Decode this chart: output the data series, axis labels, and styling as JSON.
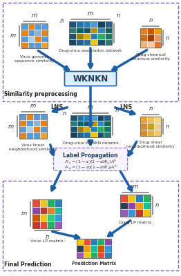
{
  "bg_color": "#ffffff",
  "dashed_box_color": "#7b5ea7",
  "blue_arrow_color": "#1a5fa8",
  "section1_label": "Similarity preprocessing",
  "section2_label": "Final Prediction",
  "wknkn_label": "WKNKN",
  "label_prop_title": "Label Propagation",
  "lns_label": "LNS",
  "matrix_colors": {
    "blue_orange": [
      [
        "#5b9bd5",
        "#e6841a",
        "#5b9bd5",
        "#5b9bd5"
      ],
      [
        "#e6841a",
        "#5b9bd5",
        "#8ab4d8",
        "#e6841a"
      ],
      [
        "#5b9bd5",
        "#b3cfe8",
        "#e6841a",
        "#5b9bd5"
      ],
      [
        "#e6841a",
        "#5b9bd5",
        "#5b9bd5",
        "#f0a030"
      ]
    ],
    "drug_virus": [
      [
        "#1a5276",
        "#2471a3",
        "#2980b9",
        "#5499c7",
        "#154360",
        "#1f618d"
      ],
      [
        "#2c7873",
        "#006266",
        "#1b4f72",
        "#b7950b",
        "#2e86c1",
        "#0e6655"
      ],
      [
        "#1a5276",
        "#9a7d0a",
        "#d4ac0d",
        "#2980b9",
        "#27ae60",
        "#117a65"
      ],
      [
        "#154360",
        "#1f618d",
        "#2471a3",
        "#f1c40f",
        "#1b4f72",
        "#2c7873"
      ]
    ],
    "drug_chem": [
      [
        "#e67e22",
        "#d35400",
        "#f39c12"
      ],
      [
        "#ca6f1e",
        "#a04000",
        "#e59866"
      ],
      [
        "#f0b27a",
        "#f5cba7",
        "#dc7633"
      ]
    ],
    "drug_warm": [
      [
        "#f0a030",
        "#e8c060",
        "#f5d580"
      ],
      [
        "#d4883a",
        "#c8a020",
        "#e8d090"
      ],
      [
        "#d09030",
        "#e0b050",
        "#f0c870"
      ]
    ],
    "virus_lp": [
      [
        "#e74c3c",
        "#f1c40f",
        "#27ae60",
        "#2980b9"
      ],
      [
        "#8e44ad",
        "#c0392b",
        "#e67e22",
        "#1abc9c"
      ],
      [
        "#d35400",
        "#f1c40f",
        "#2ecc71",
        "#3498db"
      ],
      [
        "#c0392b",
        "#e74c3c",
        "#27ae60",
        "#9b59b6"
      ]
    ],
    "drug_lp": [
      [
        "#e74c3c",
        "#f1c40f",
        "#2980b9",
        "#27ae60"
      ],
      [
        "#2c3e50",
        "#8e44ad",
        "#f39c12",
        "#1abc9c"
      ],
      [
        "#9b59b6",
        "#3498db",
        "#c0392b",
        "#f1c40f"
      ]
    ],
    "prediction": [
      [
        "#f1c40f",
        "#e74c3c",
        "#2980b9",
        "#27ae60",
        "#8e44ad"
      ],
      [
        "#2c3e50",
        "#f39c12",
        "#1abc9c",
        "#d35400",
        "#3498db"
      ],
      [
        "#9b59b6",
        "#f1c40f",
        "#27ae60",
        "#e74c3c",
        "#2980b9"
      ]
    ]
  }
}
